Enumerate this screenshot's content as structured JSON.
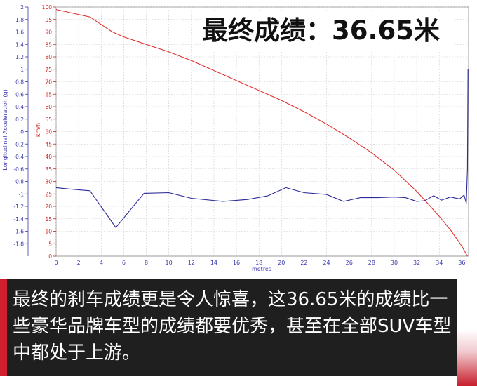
{
  "headline": "最终成绩：36.65米",
  "caption": "最终的刹车成绩更是令人惊喜，这36.65米的成绩比一些豪华品牌车型的成绩都要优秀，甚至在全部SUV车型中都处于上游。",
  "colors": {
    "speed": "#e0302e",
    "accel": "#2b2b9a",
    "grid": "#cccccc"
  },
  "chart_data": {
    "type": "line",
    "xlabel": "metres",
    "x_ticks": [
      "0",
      "2",
      "4",
      "6",
      "8",
      "10",
      "12",
      "14",
      "16",
      "18",
      "20",
      "22",
      "24",
      "26",
      "28",
      "30",
      "32",
      "34",
      "36"
    ],
    "xlim": [
      0,
      36.6
    ],
    "left_axis": {
      "label": "Longitudinal Acceleration (g)",
      "ticks": [
        "2",
        "1.8",
        "1.6",
        "1.4",
        "1.2",
        "1",
        "0.8",
        "0.6",
        "0.4",
        "0.2",
        "0",
        "-0.2",
        "-0.4",
        "-0.6",
        "-0.8",
        "-1",
        "-1.2",
        "-1.4",
        "-1.6",
        "-1.8"
      ],
      "ylim": [
        -2,
        2
      ]
    },
    "right_axis": {
      "label": "km/h",
      "ticks": [
        "100",
        "95",
        "90",
        "85",
        "80",
        "75",
        "70",
        "65",
        "60",
        "55",
        "50",
        "45",
        "40",
        "35",
        "30",
        "25",
        "20",
        "15",
        "10",
        "5",
        "0"
      ],
      "ylim": [
        0,
        100
      ]
    },
    "grid": true,
    "series": [
      {
        "axis": "right",
        "x": [
          0,
          1,
          2,
          3,
          4,
          5,
          6,
          8,
          10,
          12,
          14,
          16,
          18,
          20,
          22,
          24,
          26,
          28,
          30,
          32,
          33,
          34,
          35,
          36,
          36.5
        ],
        "values": [
          99,
          98,
          97,
          96,
          93,
          90,
          88,
          85,
          82,
          78.5,
          74.5,
          70.5,
          66.5,
          62.5,
          58,
          53,
          47.5,
          41.5,
          34.5,
          26,
          21,
          16,
          10.5,
          4,
          0
        ]
      },
      {
        "axis": "left",
        "x": [
          0,
          1,
          3,
          5.3,
          7.8,
          10,
          12,
          14.8,
          17,
          18.8,
          20.4,
          22,
          24,
          25.5,
          27,
          28.5,
          30,
          31,
          32,
          32.7,
          33.5,
          34.2,
          35,
          35.8,
          36.2,
          36.4,
          36.5,
          36.55
        ],
        "values": [
          -0.9,
          -0.92,
          -0.95,
          -1.54,
          -0.99,
          -0.98,
          -1.07,
          -1.12,
          -1.09,
          -1.03,
          -0.9,
          -0.98,
          -1.01,
          -1.12,
          -1.06,
          -1.06,
          -1.05,
          -1.06,
          -1.12,
          -1.11,
          -1.03,
          -1.1,
          -1.05,
          -1.08,
          -1.02,
          -1.15,
          -0.6,
          1.0
        ]
      }
    ]
  }
}
